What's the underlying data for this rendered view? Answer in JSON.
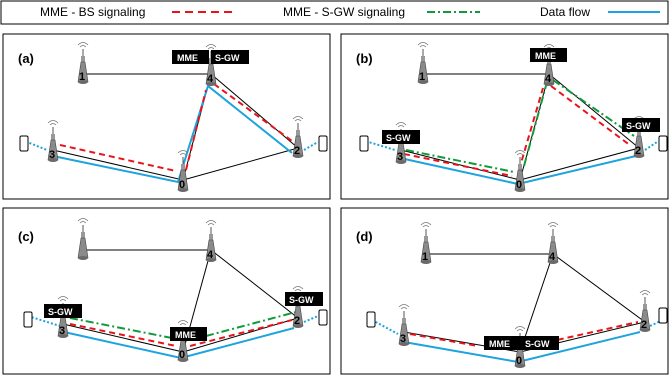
{
  "legend": {
    "mme_bs": "MME - BS signaling",
    "mme_sgw": "MME - S-GW signaling",
    "data_flow": "Data flow"
  },
  "colors": {
    "mme_bs": "#e8141b",
    "mme_sgw": "#119a3c",
    "data_flow": "#1da3dd",
    "link": "#000000",
    "tag_bg": "#000000"
  },
  "nodes": [
    "0",
    "1",
    "2",
    "3",
    "4"
  ],
  "tags": {
    "mme": "MME",
    "sgw": "S-GW"
  },
  "panels": [
    {
      "label": "(a)",
      "mme_at": "4",
      "sgw_at": "4"
    },
    {
      "label": "(b)",
      "mme_at": "4",
      "sgw_at": "3,2"
    },
    {
      "label": "(c)",
      "mme_at": "0",
      "sgw_at": "3,2"
    },
    {
      "label": "(d)",
      "mme_at": "0",
      "sgw_at": "0"
    }
  ]
}
